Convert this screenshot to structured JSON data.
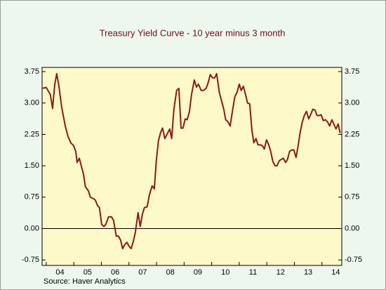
{
  "chart_data": {
    "type": "line",
    "title": "Treasury Yield Curve - 10 year minus 3 month",
    "source": "Source: Haver Analytics",
    "x": [
      2003.85,
      2004.0,
      2004.15,
      2004.23,
      2004.31,
      2004.38,
      2004.46,
      2004.56,
      2004.69,
      2004.79,
      2004.89,
      2004.99,
      2005.07,
      2005.12,
      2005.2,
      2005.27,
      2005.35,
      2005.42,
      2005.53,
      2005.6,
      2005.7,
      2005.78,
      2005.86,
      2005.93,
      2006.01,
      2006.09,
      2006.16,
      2006.26,
      2006.37,
      2006.44,
      2006.54,
      2006.62,
      2006.7,
      2006.77,
      2006.85,
      2006.93,
      2007.0,
      2007.08,
      2007.16,
      2007.23,
      2007.33,
      2007.41,
      2007.49,
      2007.56,
      2007.66,
      2007.74,
      2007.84,
      2007.92,
      2007.99,
      2008.07,
      2008.15,
      2008.22,
      2008.3,
      2008.38,
      2008.48,
      2008.55,
      2008.63,
      2008.73,
      2008.81,
      2008.89,
      2008.96,
      2009.04,
      2009.11,
      2009.19,
      2009.27,
      2009.37,
      2009.45,
      2009.52,
      2009.62,
      2009.7,
      2009.8,
      2009.88,
      2009.95,
      2010.03,
      2010.11,
      2010.18,
      2010.28,
      2010.36,
      2010.44,
      2010.51,
      2010.59,
      2010.67,
      2010.74,
      2010.84,
      2010.92,
      2011.0,
      2011.07,
      2011.15,
      2011.23,
      2011.3,
      2011.38,
      2011.46,
      2011.53,
      2011.61,
      2011.68,
      2011.76,
      2011.84,
      2011.91,
      2011.99,
      2012.07,
      2012.14,
      2012.22,
      2012.3,
      2012.37,
      2012.45,
      2012.52,
      2012.6,
      2012.68,
      2012.75,
      2012.83,
      2012.91,
      2012.98,
      2013.06,
      2013.13,
      2013.21,
      2013.29,
      2013.36,
      2013.44,
      2013.52,
      2013.59,
      2013.67,
      2013.75,
      2013.82,
      2013.9,
      2013.97,
      2014.05,
      2014.13,
      2014.2,
      2014.28,
      2014.36,
      2014.43,
      2014.51,
      2014.59,
      2014.66
    ],
    "series": [
      {
        "color": "#8b1a1a",
        "values": [
          3.35,
          3.37,
          3.2,
          2.87,
          3.45,
          3.7,
          3.4,
          2.9,
          2.45,
          2.2,
          2.05,
          1.98,
          1.85,
          1.58,
          1.68,
          1.5,
          1.3,
          1.0,
          0.9,
          0.75,
          0.72,
          0.68,
          0.55,
          0.5,
          0.1,
          0.05,
          0.1,
          0.28,
          0.28,
          0.2,
          -0.18,
          -0.18,
          -0.28,
          -0.48,
          -0.38,
          -0.33,
          -0.42,
          -0.48,
          -0.3,
          -0.1,
          0.38,
          0.05,
          0.35,
          0.5,
          0.52,
          0.8,
          1.02,
          0.95,
          1.6,
          2.1,
          2.3,
          2.4,
          2.15,
          2.25,
          2.38,
          2.15,
          2.85,
          3.3,
          3.35,
          2.4,
          2.4,
          2.62,
          2.6,
          2.78,
          3.2,
          3.55,
          3.38,
          3.45,
          3.3,
          3.3,
          3.35,
          3.5,
          3.68,
          3.6,
          3.6,
          3.7,
          3.25,
          3.05,
          2.85,
          2.6,
          2.55,
          2.45,
          2.75,
          3.15,
          3.25,
          3.45,
          3.3,
          3.4,
          3.2,
          3.0,
          2.98,
          2.35,
          2.05,
          2.15,
          2.0,
          2.0,
          1.98,
          1.9,
          2.12,
          2.0,
          1.85,
          1.6,
          1.5,
          1.5,
          1.62,
          1.65,
          1.68,
          1.58,
          1.65,
          1.85,
          1.88,
          1.88,
          1.7,
          1.95,
          2.3,
          2.55,
          2.7,
          2.8,
          2.62,
          2.72,
          2.85,
          2.83,
          2.7,
          2.7,
          2.72,
          2.58,
          2.6,
          2.55,
          2.45,
          2.6,
          2.5,
          2.38,
          2.5,
          2.28
        ]
      }
    ],
    "xlim": [
      2003.85,
      2014.72
    ],
    "xticks": [
      {
        "value": 2004.5,
        "label": "04"
      },
      {
        "value": 2005.5,
        "label": "05"
      },
      {
        "value": 2006.5,
        "label": "06"
      },
      {
        "value": 2007.5,
        "label": "07"
      },
      {
        "value": 2008.5,
        "label": "08"
      },
      {
        "value": 2009.5,
        "label": "09"
      },
      {
        "value": 2010.5,
        "label": "10"
      },
      {
        "value": 2011.5,
        "label": "11"
      },
      {
        "value": 2012.5,
        "label": "12"
      },
      {
        "value": 2013.5,
        "label": "13"
      },
      {
        "value": 2014.5,
        "label": "14"
      }
    ],
    "ylim": [
      -0.88,
      3.85
    ],
    "yticks": [
      {
        "value": 3.75,
        "label": "3.75"
      },
      {
        "value": 3.0,
        "label": "3.00"
      },
      {
        "value": 2.25,
        "label": "2.25"
      },
      {
        "value": 1.5,
        "label": "1.50"
      },
      {
        "value": 0.75,
        "label": "0.75"
      },
      {
        "value": 0,
        "label": "0.00"
      },
      {
        "value": -0.75,
        "label": "-0.75"
      }
    ],
    "zero_line": true
  }
}
